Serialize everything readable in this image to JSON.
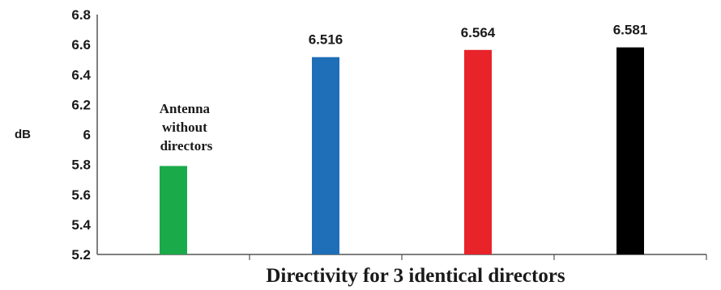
{
  "chart_data": {
    "type": "bar",
    "categories": [
      "",
      "",
      "",
      ""
    ],
    "values": [
      5.79,
      6.516,
      6.564,
      6.581
    ],
    "colors": [
      "#1aaa4a",
      "#1f6fb8",
      "#e8232a",
      "#000000"
    ],
    "data_labels": [
      "",
      "6.516",
      "6.564",
      "6.581"
    ],
    "annotation": [
      "Antenna",
      "without",
      "directors"
    ],
    "xlabel": "Directivity for 3 identical  directors",
    "ylabel": "dB",
    "ylim": [
      5.2,
      6.8
    ],
    "yticks": [
      "6.8",
      "6.6",
      "6.4",
      "6.2",
      "6",
      "5.8",
      "5.6",
      "5.4",
      "5.2"
    ],
    "ytick_values": [
      6.8,
      6.6,
      6.4,
      6.2,
      6.0,
      5.8,
      5.6,
      5.4,
      5.2
    ],
    "grid": false,
    "category_dividers": true
  }
}
